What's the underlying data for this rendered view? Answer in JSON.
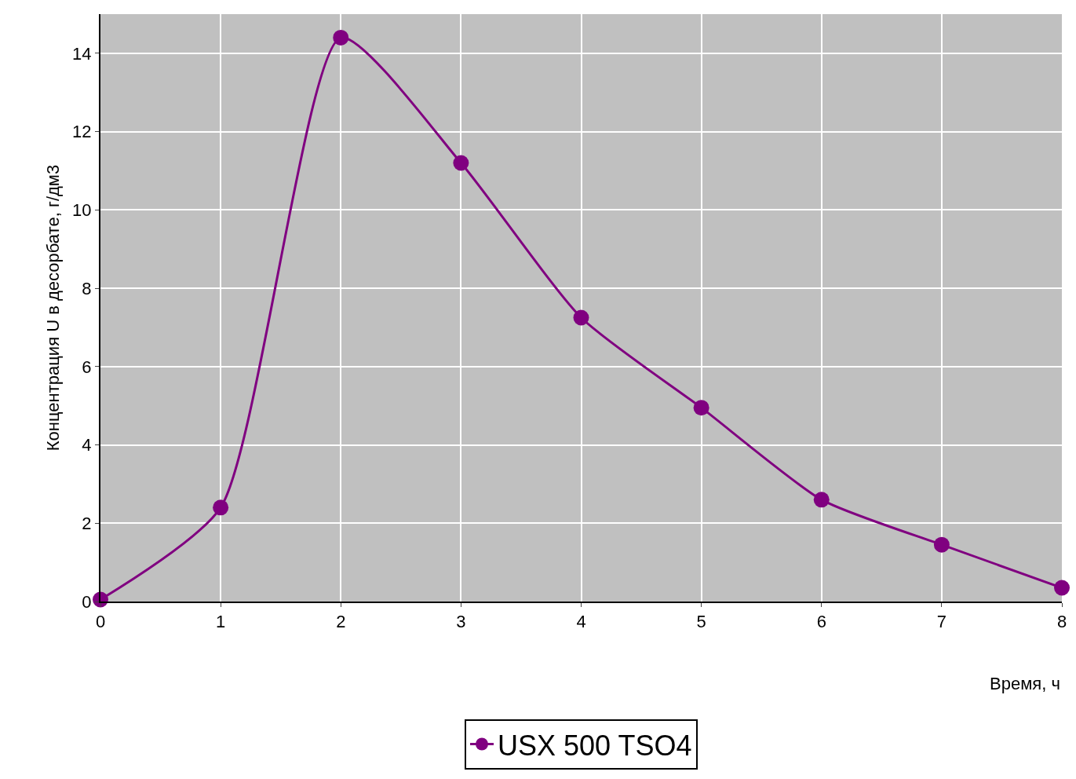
{
  "chart_data": {
    "type": "line",
    "xlabel": "Время, ч",
    "ylabel": "Концентрация U в десорбате, г/дм3",
    "x": [
      0,
      1,
      2,
      3,
      4,
      5,
      6,
      7,
      8
    ],
    "series": [
      {
        "name": "USX 500 TSO4",
        "color": "#800080",
        "values": [
          0.05,
          2.4,
          14.4,
          11.2,
          7.25,
          4.95,
          2.6,
          1.45,
          0.35
        ]
      }
    ],
    "xlim": [
      0,
      8
    ],
    "xticks": [
      0,
      1,
      2,
      3,
      4,
      5,
      6,
      7,
      8
    ],
    "ylim": [
      0,
      15
    ],
    "yticks": [
      0,
      2,
      4,
      6,
      8,
      10,
      12,
      14
    ],
    "grid": true,
    "legend": "bottom",
    "marker": "circle",
    "line_style": "solid"
  }
}
